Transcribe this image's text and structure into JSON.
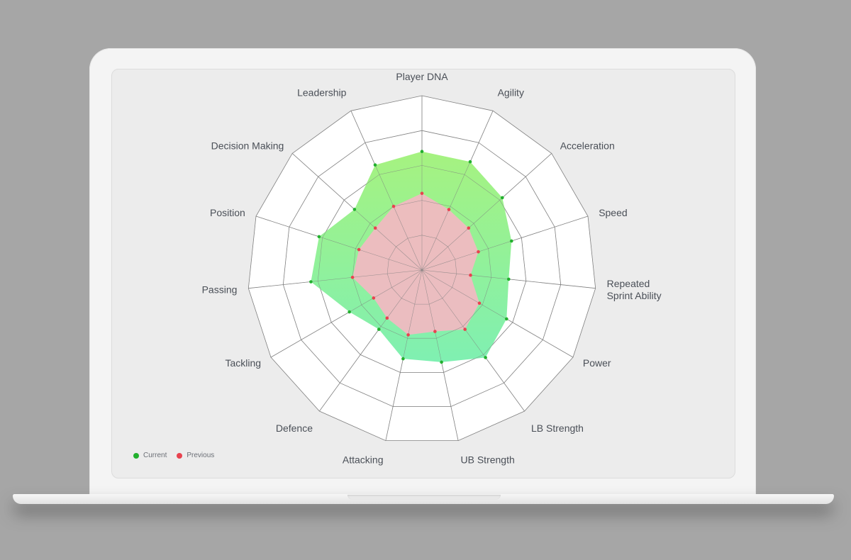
{
  "chart_data": {
    "type": "radar",
    "axes": [
      "Player DNA",
      "Agility",
      "Acceleration",
      "Speed",
      "Repeated\nSprint Ability",
      "Power",
      "LB Strength",
      "UB Strength",
      "Attacking",
      "Defence",
      "Tackling",
      "Passing",
      "Position",
      "Decision Making",
      "Leadership"
    ],
    "rmax": 5,
    "grid_levels": 5,
    "series": [
      {
        "name": "Current",
        "color": "#22b02e",
        "values": [
          3.4,
          3.4,
          3.1,
          2.7,
          2.5,
          2.8,
          3.1,
          2.7,
          2.6,
          2.1,
          2.4,
          3.2,
          3.1,
          2.6,
          3.3
        ]
      },
      {
        "name": "Previous",
        "color": "#e8434f",
        "values": [
          2.2,
          1.9,
          1.8,
          1.7,
          1.4,
          1.9,
          2.1,
          1.8,
          1.9,
          1.7,
          1.6,
          2.0,
          1.9,
          1.8,
          2.0
        ]
      }
    ]
  },
  "legend": {
    "current": "Current",
    "previous": "Previous"
  },
  "colors": {
    "current_fill_top": "#a6f280",
    "current_fill_bottom": "#7ff0b2",
    "previous_fill": "#f3b9c2",
    "grid": "#8f8f8f",
    "ring_fill": "#ffffff"
  }
}
